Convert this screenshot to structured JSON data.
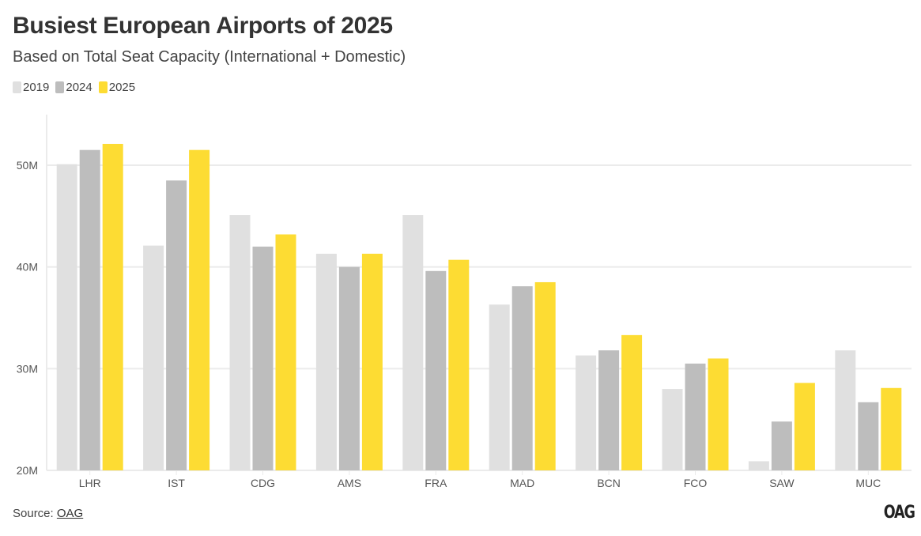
{
  "header": {
    "title": "Busiest European Airports of 2025",
    "subtitle": "Based on Total Seat Capacity (International + Domestic)"
  },
  "footer": {
    "source_label": "Source:",
    "source_link": "OAG",
    "logo": "OAG"
  },
  "colors": {
    "2019": "#e0e0e0",
    "2024": "#bdbdbd",
    "2025": "#fddc33",
    "grid": "#ebebeb"
  },
  "chart_data": {
    "type": "bar",
    "title": "Busiest European Airports of 2025",
    "subtitle": "Based on Total Seat Capacity (International + Domestic)",
    "xlabel": "",
    "ylabel": "",
    "ylim": [
      20,
      55
    ],
    "yticks": [
      20,
      30,
      40,
      50
    ],
    "ytick_labels": [
      "20M",
      "30M",
      "40M",
      "50M"
    ],
    "grid": true,
    "legend_position": "top-left",
    "categories": [
      "LHR",
      "IST",
      "CDG",
      "AMS",
      "FRA",
      "MAD",
      "BCN",
      "FCO",
      "SAW",
      "MUC"
    ],
    "series": [
      {
        "name": "2019",
        "values": [
          50.1,
          42.1,
          45.1,
          41.3,
          45.1,
          36.3,
          31.3,
          28.0,
          20.9,
          31.8
        ]
      },
      {
        "name": "2024",
        "values": [
          51.5,
          48.5,
          42.0,
          40.0,
          39.6,
          38.1,
          31.8,
          30.5,
          24.8,
          26.7
        ]
      },
      {
        "name": "2025",
        "values": [
          52.1,
          51.5,
          43.2,
          41.3,
          40.7,
          38.5,
          33.3,
          31.0,
          28.6,
          28.1
        ]
      }
    ]
  }
}
